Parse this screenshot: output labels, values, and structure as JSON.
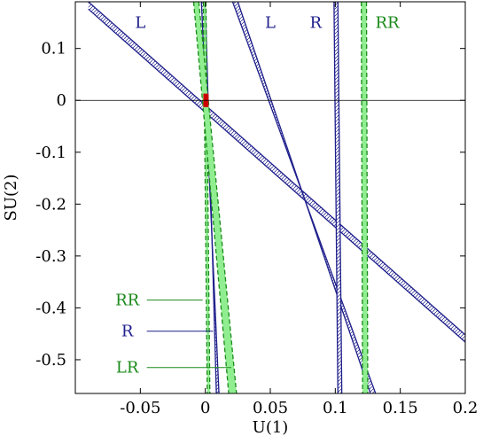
{
  "chart_data": {
    "type": "line",
    "title": "",
    "xlabel": "U(1)",
    "ylabel": "SU(2)",
    "xlim": [
      -0.1,
      0.2
    ],
    "ylim": [
      -0.565,
      0.19
    ],
    "x_ticks": [
      -0.05,
      0,
      0.05,
      0.1,
      0.15,
      0.2
    ],
    "x_tick_labels": [
      "-0.05",
      "0",
      "0.05",
      "0.1",
      "0.15",
      "0.2"
    ],
    "y_ticks": [
      0.1,
      0,
      -0.1,
      -0.2,
      -0.3,
      -0.4,
      -0.5
    ],
    "y_tick_labels": [
      "0.1",
      "0",
      "-0.1",
      "-0.2",
      "-0.3",
      "-0.4",
      "-0.5"
    ],
    "grid": false,
    "reference_line_y": 0,
    "colors": {
      "blue": "#1f1f8c",
      "green": "#1a8a1a",
      "green_fill": "#90ee90",
      "red": "#cc0000"
    },
    "bands": [
      {
        "name": "L",
        "color": "blue",
        "edges": [
          [
            [
              -0.09,
              0.19
            ],
            [
              0.2,
              -0.452
            ]
          ],
          [
            [
              -0.09,
              0.176
            ],
            [
              0.2,
              -0.466
            ]
          ]
        ]
      },
      {
        "name": "L",
        "color": "blue",
        "edges": [
          [
            [
              0.021,
              0.19
            ],
            [
              0.131,
              -0.565
            ]
          ],
          [
            [
              0.025,
              0.19
            ],
            [
              0.127,
              -0.565
            ]
          ]
        ]
      },
      {
        "name": "R",
        "color": "blue",
        "edges": [
          [
            [
              0.099,
              0.19
            ],
            [
              0.102,
              -0.565
            ]
          ],
          [
            [
              0.102,
              0.19
            ],
            [
              0.105,
              -0.565
            ]
          ]
        ]
      },
      {
        "name": "R",
        "color": "blue",
        "edges": [
          [
            [
              -0.003,
              0.19
            ],
            [
              0.0105,
              -0.565
            ]
          ],
          [
            [
              0.0,
              0.19
            ],
            [
              0.0085,
              -0.565
            ]
          ]
        ]
      },
      {
        "name": "RR",
        "color": "green",
        "edges": [
          [
            [
              0.12,
              0.19
            ],
            [
              0.121,
              -0.565
            ]
          ],
          [
            [
              0.124,
              0.19
            ],
            [
              0.125,
              -0.565
            ]
          ]
        ]
      },
      {
        "name": "RR",
        "color": "green",
        "edges": [
          [
            [
              -0.0015,
              0.19
            ],
            [
              0.0015,
              -0.565
            ]
          ],
          [
            [
              0.0005,
              0.19
            ],
            [
              0.0035,
              -0.565
            ]
          ]
        ]
      },
      {
        "name": "LR",
        "color": "green",
        "edges": [
          [
            [
              -0.009,
              0.19
            ],
            [
              0.018,
              -0.565
            ]
          ],
          [
            [
              -0.005,
              0.19
            ],
            [
              0.024,
              -0.565
            ]
          ]
        ]
      }
    ],
    "annotations": [
      {
        "text": "L",
        "color": "blue",
        "at": [
          -0.05,
          0.15
        ]
      },
      {
        "text": "L",
        "color": "blue",
        "at": [
          0.05,
          0.15
        ]
      },
      {
        "text": "R",
        "color": "blue",
        "at": [
          0.085,
          0.15
        ]
      },
      {
        "text": "RR",
        "color": "green",
        "at": [
          0.14,
          0.15
        ]
      },
      {
        "text": "RR",
        "color": "green",
        "at": [
          -0.06,
          -0.385
        ],
        "points_to": [
          -0.002,
          -0.385
        ]
      },
      {
        "text": "R",
        "color": "blue",
        "at": [
          -0.06,
          -0.445
        ],
        "points_to": [
          0.006,
          -0.445
        ]
      },
      {
        "text": "LR",
        "color": "green",
        "at": [
          -0.06,
          -0.515
        ],
        "points_to": [
          0.02,
          -0.515
        ]
      }
    ],
    "highlight_region": {
      "color": "red",
      "x": [
        -0.0015,
        0.0025
      ],
      "y": [
        -0.013,
        0.013
      ]
    }
  }
}
